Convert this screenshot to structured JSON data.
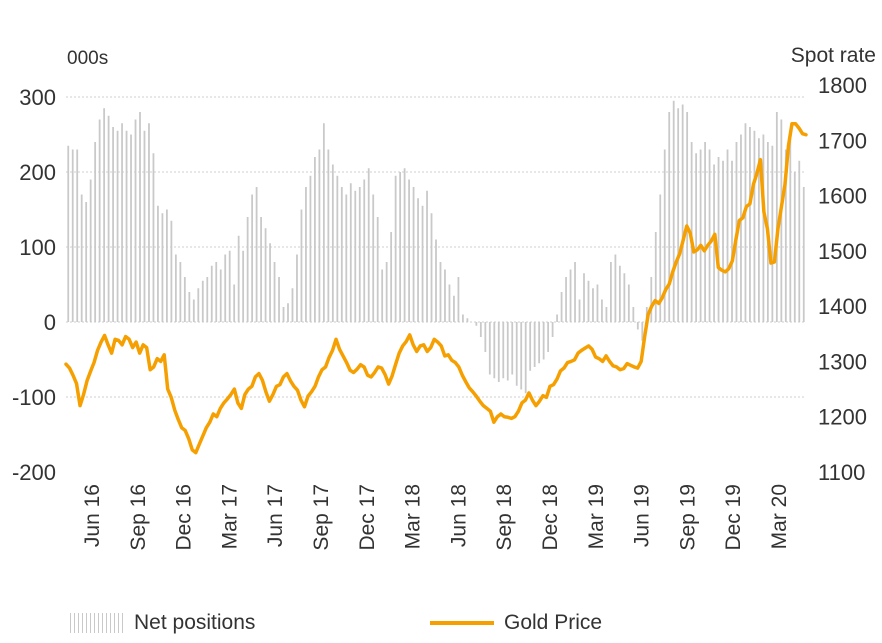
{
  "chart_data": {
    "type": "bar+line",
    "left_axis": {
      "unit_label": "000s",
      "ticks": [
        300,
        200,
        100,
        0,
        -100,
        -200
      ],
      "range": [
        -200,
        300
      ]
    },
    "right_axis": {
      "label": "Spot rate",
      "ticks": [
        1800,
        1700,
        1600,
        1500,
        1400,
        1300,
        1200,
        1100
      ],
      "range": [
        1100,
        1800
      ]
    },
    "x_tick_labels": [
      "Jun 16",
      "Sep 16",
      "Dec 16",
      "Mar 17",
      "Jun 17",
      "Sep 17",
      "Dec 17",
      "Mar 18",
      "Jun 18",
      "Sep 18",
      "Dec 18",
      "Mar 19",
      "Jun 19",
      "Sep 19",
      "Dec 19",
      "Mar 20"
    ],
    "grid": true,
    "legend_position": "bottom",
    "series": [
      {
        "name": "Net positions",
        "kind": "bar",
        "axis": "left",
        "color": "#c9c9c9",
        "values": [
          235,
          230,
          230,
          170,
          160,
          190,
          240,
          270,
          285,
          275,
          260,
          255,
          265,
          255,
          250,
          270,
          280,
          255,
          265,
          225,
          155,
          145,
          150,
          135,
          90,
          80,
          60,
          40,
          30,
          45,
          55,
          60,
          75,
          80,
          70,
          90,
          95,
          50,
          115,
          95,
          140,
          170,
          180,
          140,
          125,
          105,
          80,
          60,
          20,
          25,
          45,
          90,
          150,
          180,
          195,
          220,
          230,
          265,
          230,
          210,
          195,
          180,
          170,
          185,
          175,
          180,
          190,
          205,
          170,
          140,
          70,
          80,
          120,
          195,
          200,
          205,
          190,
          180,
          165,
          155,
          175,
          145,
          110,
          80,
          70,
          50,
          35,
          60,
          10,
          5,
          0,
          -5,
          -20,
          -40,
          -70,
          -75,
          -80,
          -75,
          -78,
          -70,
          -85,
          -90,
          -95,
          -65,
          -60,
          -55,
          -50,
          -40,
          -20,
          10,
          40,
          60,
          70,
          80,
          30,
          65,
          55,
          45,
          50,
          30,
          20,
          80,
          90,
          75,
          65,
          50,
          20,
          -10,
          -25,
          20,
          60,
          120,
          170,
          230,
          280,
          295,
          285,
          290,
          280,
          240,
          225,
          230,
          240,
          230,
          210,
          220,
          215,
          230,
          215,
          240,
          250,
          265,
          260,
          255,
          245,
          250,
          240,
          235,
          280,
          270,
          230,
          245,
          200,
          215,
          180
        ],
        "note": "weekly values, approximate"
      },
      {
        "name": "Gold Price",
        "kind": "line",
        "axis": "right",
        "color": "#f5a000",
        "values": [
          1295,
          1288,
          1275,
          1260,
          1220,
          1240,
          1265,
          1282,
          1298,
          1320,
          1335,
          1347,
          1330,
          1315,
          1340,
          1338,
          1330,
          1345,
          1340,
          1325,
          1335,
          1315,
          1330,
          1325,
          1285,
          1290,
          1305,
          1300,
          1312,
          1250,
          1235,
          1212,
          1195,
          1180,
          1175,
          1160,
          1140,
          1135,
          1150,
          1165,
          1180,
          1190,
          1205,
          1200,
          1215,
          1225,
          1232,
          1240,
          1250,
          1225,
          1215,
          1240,
          1250,
          1255,
          1272,
          1278,
          1266,
          1245,
          1228,
          1240,
          1255,
          1258,
          1272,
          1278,
          1265,
          1255,
          1248,
          1230,
          1218,
          1237,
          1245,
          1255,
          1272,
          1285,
          1290,
          1307,
          1320,
          1340,
          1322,
          1310,
          1298,
          1284,
          1280,
          1286,
          1294,
          1290,
          1275,
          1272,
          1280,
          1290,
          1288,
          1276,
          1259,
          1274,
          1295,
          1315,
          1328,
          1336,
          1348,
          1330,
          1318,
          1328,
          1330,
          1318,
          1325,
          1340,
          1335,
          1328,
          1310,
          1312,
          1302,
          1298,
          1290,
          1275,
          1263,
          1252,
          1245,
          1237,
          1228,
          1220,
          1215,
          1210,
          1190,
          1200,
          1205,
          1200,
          1199,
          1197,
          1200,
          1210,
          1225,
          1230,
          1243,
          1230,
          1220,
          1228,
          1238,
          1235,
          1255,
          1258,
          1268,
          1283,
          1288,
          1298,
          1300,
          1303,
          1315,
          1320,
          1324,
          1328,
          1322,
          1308,
          1305,
          1300,
          1310,
          1300,
          1292,
          1290,
          1285,
          1287,
          1296,
          1293,
          1290,
          1288,
          1300,
          1345,
          1385,
          1400,
          1410,
          1405,
          1415,
          1430,
          1440,
          1462,
          1480,
          1495,
          1520,
          1545,
          1532,
          1498,
          1502,
          1510,
          1500,
          1510,
          1518,
          1530,
          1470,
          1465,
          1462,
          1468,
          1482,
          1520,
          1555,
          1560,
          1580,
          1585,
          1620,
          1640,
          1665,
          1570,
          1540,
          1478,
          1480,
          1540,
          1580,
          1620,
          1690,
          1730,
          1730,
          1722,
          1712,
          1710
        ]
      }
    ],
    "legend": [
      {
        "label": "Net positions",
        "swatch": "bars"
      },
      {
        "label": "Gold Price",
        "swatch": "line"
      }
    ]
  }
}
